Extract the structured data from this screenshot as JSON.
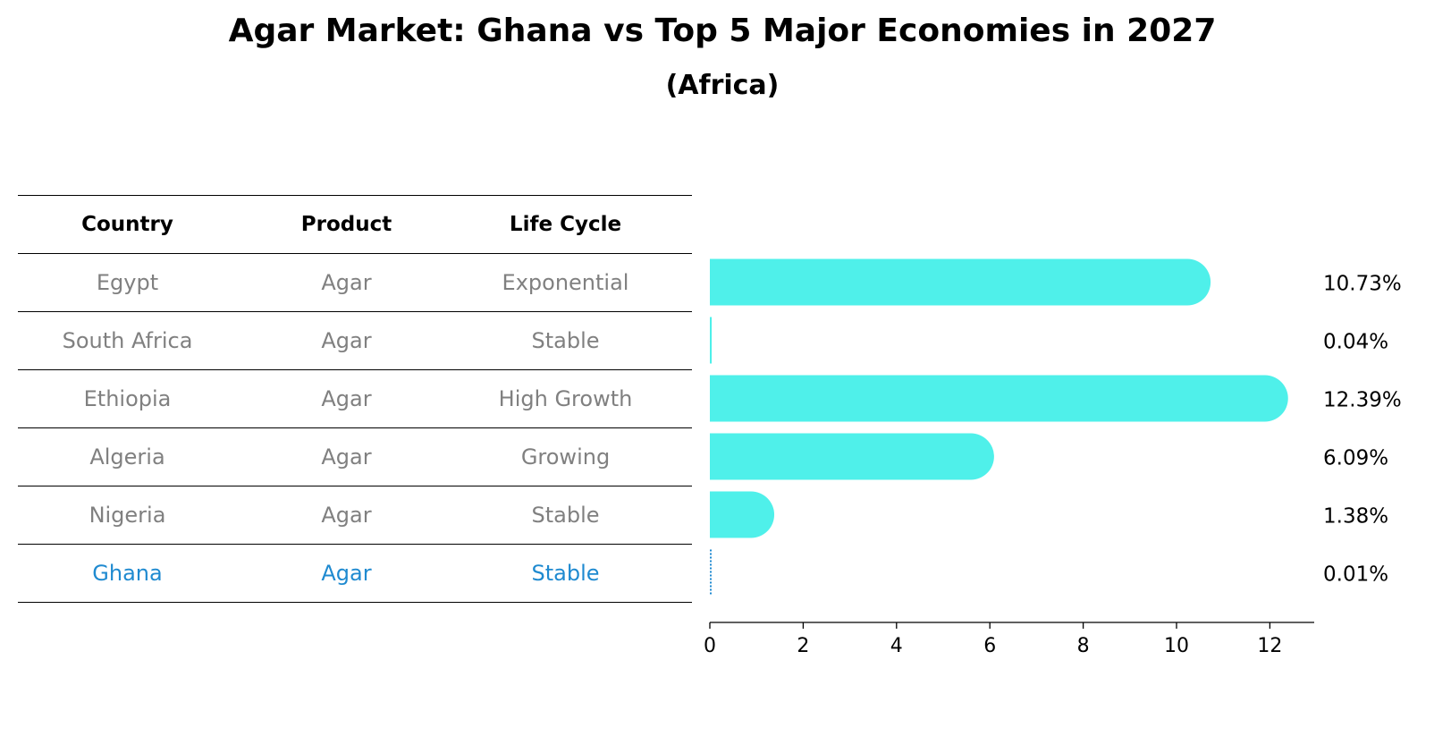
{
  "title": "Agar Market: Ghana vs Top 5 Major Economies in 2027",
  "subtitle": "(Africa)",
  "table": {
    "headers": [
      "Country",
      "Product",
      "Life Cycle"
    ],
    "rows": [
      [
        "Egypt",
        "Agar",
        "Exponential"
      ],
      [
        "South Africa",
        "Agar",
        "Stable"
      ],
      [
        "Ethiopia",
        "Agar",
        "High Growth"
      ],
      [
        "Algeria",
        "Agar",
        "Growing"
      ],
      [
        "Nigeria",
        "Agar",
        "Stable"
      ],
      [
        "Ghana",
        "Agar",
        "Stable"
      ]
    ]
  },
  "chart_data": {
    "type": "bar",
    "orientation": "horizontal",
    "categories": [
      "Egypt",
      "South Africa",
      "Ethiopia",
      "Algeria",
      "Nigeria",
      "Ghana"
    ],
    "values": [
      10.73,
      0.04,
      12.39,
      6.09,
      1.38,
      0.01
    ],
    "labels": [
      "10.73%",
      "0.04%",
      "12.39%",
      "6.09%",
      "1.38%",
      "0.01%"
    ],
    "xlim": [
      0,
      13
    ],
    "xticks": [
      0,
      2,
      4,
      6,
      8,
      10,
      12
    ],
    "bar_color": "#4ff0ea",
    "highlight_color": "#1f8ad0",
    "grid": false
  }
}
